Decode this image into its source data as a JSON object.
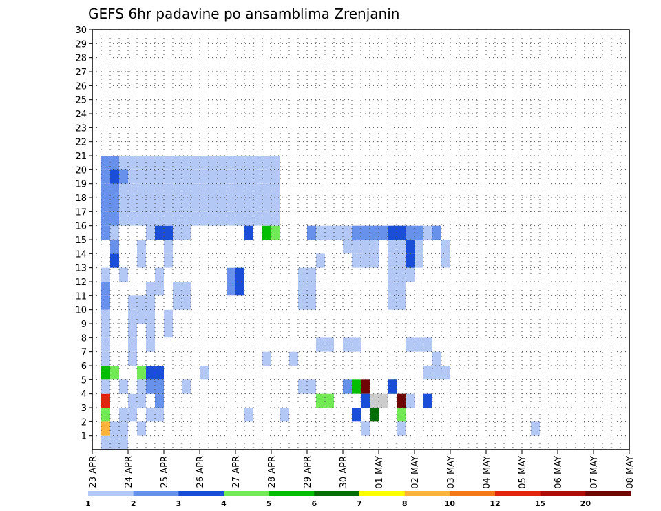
{
  "chart_data": {
    "type": "heatmap",
    "title": "GEFS 6hr padavine po ansamblima Zrenjanin",
    "x_tick_labels": [
      "23 APR",
      "24 APR",
      "25 APR",
      "26 APR",
      "27 APR",
      "28 APR",
      "29 APR",
      "30 APR",
      "01 MAY",
      "02 MAY",
      "03 MAY",
      "04 MAY",
      "05 MAY",
      "06 MAY",
      "07 MAY",
      "08 MAY"
    ],
    "y_tick_labels": [
      "1",
      "2",
      "3",
      "4",
      "5",
      "6",
      "7",
      "8",
      "9",
      "10",
      "11",
      "12",
      "13",
      "14",
      "15",
      "16",
      "17",
      "18",
      "19",
      "20",
      "21",
      "22",
      "23",
      "24",
      "25",
      "26",
      "27",
      "28",
      "29",
      "30"
    ],
    "x_range": [
      "23 APR 00z",
      "08 MAY 00z"
    ],
    "x_step_hours": 6,
    "y_range": [
      0,
      30
    ],
    "grid": true,
    "colorbar": {
      "tick_labels": [
        "1",
        "2",
        "3",
        "4",
        "5",
        "6",
        "7",
        "8",
        "10",
        "12",
        "15",
        "20"
      ],
      "colors": [
        "#b4c8f5",
        "#6891ec",
        "#1b4ed8",
        "#72ea55",
        "#03be03",
        "#066e06",
        "#ffff00",
        "#fbb33b",
        "#f57919",
        "#e0240e",
        "#b00b0b",
        "#700505"
      ],
      "bounds": [
        1,
        2,
        3,
        4,
        5,
        6,
        7,
        8,
        10,
        12,
        15,
        20,
        25
      ]
    },
    "cells": [
      [
        1,
        0,
        1
      ],
      [
        3,
        2,
        1
      ],
      [
        3,
        4,
        1
      ],
      [
        5,
        9,
        1
      ],
      [
        10,
        4,
        1
      ],
      [
        21,
        2,
        1
      ],
      [
        34,
        1,
        1
      ],
      [
        49,
        1,
        1
      ],
      [
        1,
        1,
        8
      ],
      [
        2,
        0,
        1
      ],
      [
        2,
        1,
        1
      ],
      [
        3,
        0,
        1
      ],
      [
        3,
        1,
        1
      ],
      [
        17,
        2,
        1
      ],
      [
        25,
        3,
        4
      ],
      [
        26,
        3,
        4
      ],
      [
        29,
        4,
        5
      ],
      [
        30,
        4,
        12
      ],
      [
        31,
        3,
        13
      ],
      [
        32,
        3,
        13
      ],
      [
        33,
        4,
        6
      ],
      [
        34,
        3,
        12
      ],
      [
        35,
        3,
        1
      ],
      [
        37,
        3,
        3
      ],
      [
        1,
        2,
        4
      ],
      [
        1,
        3,
        10
      ],
      [
        4,
        2,
        1
      ],
      [
        4,
        3,
        1
      ],
      [
        5,
        1,
        1
      ],
      [
        5,
        3,
        1
      ],
      [
        5,
        4,
        1
      ],
      [
        6,
        2,
        1
      ],
      [
        6,
        4,
        2
      ],
      [
        7,
        2,
        1
      ],
      [
        7,
        3,
        2
      ],
      [
        7,
        4,
        2
      ],
      [
        23,
        4,
        1
      ],
      [
        24,
        4,
        1
      ],
      [
        28,
        4,
        2
      ],
      [
        29,
        2,
        3
      ],
      [
        30,
        1,
        1
      ],
      [
        30,
        3,
        3
      ],
      [
        31,
        2,
        6
      ],
      [
        33,
        4,
        3
      ],
      [
        34,
        2,
        4
      ],
      [
        1,
        4,
        1
      ],
      [
        1,
        5,
        5
      ],
      [
        2,
        5,
        4
      ],
      [
        5,
        5,
        4
      ],
      [
        6,
        5,
        3
      ],
      [
        7,
        5,
        3
      ],
      [
        12,
        5,
        1
      ],
      [
        37,
        5,
        1
      ],
      [
        38,
        5,
        1
      ],
      [
        39,
        5,
        1
      ],
      [
        1,
        6,
        1
      ],
      [
        1,
        7,
        1
      ],
      [
        1,
        8,
        1
      ],
      [
        4,
        6,
        1
      ],
      [
        4,
        7,
        1
      ],
      [
        4,
        8,
        1
      ],
      [
        6,
        7,
        1
      ],
      [
        6,
        8,
        1
      ],
      [
        6,
        9,
        1
      ],
      [
        8,
        8,
        1
      ],
      [
        8,
        9,
        1
      ],
      [
        19,
        6,
        1
      ],
      [
        22,
        6,
        1
      ],
      [
        25,
        7,
        1
      ],
      [
        26,
        7,
        1
      ],
      [
        28,
        7,
        1
      ],
      [
        29,
        7,
        1
      ],
      [
        35,
        7,
        1
      ],
      [
        36,
        7,
        1
      ],
      [
        37,
        7,
        1
      ],
      [
        38,
        6,
        1
      ],
      [
        1,
        9,
        1
      ],
      [
        1,
        10,
        2
      ],
      [
        1,
        11,
        2
      ],
      [
        1,
        12,
        1
      ],
      [
        3,
        12,
        1
      ],
      [
        4,
        9,
        1
      ],
      [
        4,
        10,
        1
      ],
      [
        5,
        9,
        1
      ],
      [
        5,
        10,
        1
      ],
      [
        6,
        10,
        1
      ],
      [
        6,
        11,
        1
      ],
      [
        7,
        11,
        1
      ],
      [
        7,
        12,
        1
      ],
      [
        9,
        10,
        1
      ],
      [
        9,
        11,
        1
      ],
      [
        10,
        10,
        1
      ],
      [
        10,
        11,
        1
      ],
      [
        15,
        11,
        2
      ],
      [
        15,
        12,
        2
      ],
      [
        16,
        11,
        3
      ],
      [
        16,
        12,
        3
      ],
      [
        23,
        10,
        1
      ],
      [
        23,
        11,
        1
      ],
      [
        23,
        12,
        1
      ],
      [
        24,
        10,
        1
      ],
      [
        24,
        11,
        1
      ],
      [
        24,
        12,
        1
      ],
      [
        25,
        13,
        1
      ],
      [
        33,
        10,
        1
      ],
      [
        33,
        11,
        1
      ],
      [
        33,
        12,
        1
      ],
      [
        33,
        13,
        1
      ],
      [
        33,
        14,
        1
      ],
      [
        34,
        10,
        1
      ],
      [
        34,
        11,
        1
      ],
      [
        34,
        12,
        1
      ],
      [
        34,
        13,
        1
      ],
      [
        34,
        14,
        1
      ],
      [
        35,
        12,
        1
      ],
      [
        35,
        13,
        1
      ],
      [
        2,
        13,
        3
      ],
      [
        2,
        14,
        2
      ],
      [
        5,
        13,
        1
      ],
      [
        5,
        14,
        1
      ],
      [
        8,
        13,
        1
      ],
      [
        8,
        14,
        1
      ],
      [
        28,
        14,
        1
      ],
      [
        29,
        13,
        1
      ],
      [
        29,
        14,
        1
      ],
      [
        30,
        13,
        1
      ],
      [
        30,
        14,
        1
      ],
      [
        31,
        13,
        1
      ],
      [
        31,
        14,
        1
      ],
      [
        33,
        14,
        1
      ],
      [
        34,
        14,
        1
      ],
      [
        35,
        13,
        3
      ],
      [
        35,
        14,
        3
      ],
      [
        36,
        13,
        1
      ],
      [
        36,
        14,
        1
      ],
      [
        39,
        13,
        1
      ],
      [
        39,
        14,
        1
      ],
      [
        1,
        15,
        2
      ],
      [
        2,
        15,
        1
      ],
      [
        6,
        15,
        1
      ],
      [
        7,
        15,
        3
      ],
      [
        8,
        15,
        3
      ],
      [
        9,
        15,
        1
      ],
      [
        10,
        15,
        1
      ],
      [
        17,
        15,
        3
      ],
      [
        19,
        15,
        5
      ],
      [
        20,
        15,
        4
      ],
      [
        24,
        15,
        2
      ],
      [
        25,
        15,
        1
      ],
      [
        26,
        15,
        1
      ],
      [
        27,
        15,
        1
      ],
      [
        28,
        15,
        1
      ],
      [
        29,
        15,
        2
      ],
      [
        30,
        15,
        2
      ],
      [
        31,
        15,
        2
      ],
      [
        32,
        15,
        2
      ],
      [
        33,
        15,
        3
      ],
      [
        34,
        15,
        3
      ],
      [
        35,
        15,
        2
      ],
      [
        36,
        15,
        2
      ],
      [
        37,
        15,
        1
      ],
      [
        38,
        15,
        2
      ],
      [
        1,
        16,
        2
      ],
      [
        1,
        17,
        2
      ],
      [
        1,
        18,
        2
      ],
      [
        1,
        19,
        2
      ],
      [
        1,
        20,
        2
      ],
      [
        2,
        16,
        2
      ],
      [
        2,
        17,
        2
      ],
      [
        2,
        18,
        2
      ],
      [
        2,
        19,
        3
      ],
      [
        2,
        20,
        2
      ],
      [
        3,
        16,
        1
      ],
      [
        3,
        17,
        1
      ],
      [
        3,
        18,
        1
      ],
      [
        3,
        19,
        2
      ],
      [
        3,
        20,
        1
      ],
      [
        4,
        16,
        1
      ],
      [
        4,
        17,
        1
      ],
      [
        4,
        18,
        1
      ],
      [
        4,
        19,
        1
      ],
      [
        4,
        20,
        1
      ],
      [
        5,
        16,
        1
      ],
      [
        5,
        17,
        1
      ],
      [
        5,
        18,
        1
      ],
      [
        5,
        19,
        1
      ],
      [
        5,
        20,
        1
      ],
      [
        6,
        16,
        1
      ],
      [
        6,
        17,
        1
      ],
      [
        6,
        18,
        1
      ],
      [
        6,
        19,
        1
      ],
      [
        6,
        20,
        1
      ],
      [
        7,
        16,
        1
      ],
      [
        7,
        17,
        1
      ],
      [
        7,
        18,
        1
      ],
      [
        7,
        19,
        1
      ],
      [
        7,
        20,
        1
      ],
      [
        8,
        16,
        1
      ],
      [
        8,
        17,
        1
      ],
      [
        8,
        18,
        1
      ],
      [
        8,
        19,
        1
      ],
      [
        8,
        20,
        1
      ],
      [
        9,
        16,
        1
      ],
      [
        9,
        17,
        1
      ],
      [
        9,
        18,
        1
      ],
      [
        9,
        19,
        1
      ],
      [
        9,
        20,
        1
      ],
      [
        10,
        16,
        1
      ],
      [
        10,
        17,
        1
      ],
      [
        10,
        18,
        1
      ],
      [
        10,
        19,
        1
      ],
      [
        10,
        20,
        1
      ],
      [
        11,
        16,
        1
      ],
      [
        11,
        17,
        1
      ],
      [
        11,
        18,
        1
      ],
      [
        11,
        19,
        1
      ],
      [
        11,
        20,
        1
      ],
      [
        12,
        16,
        1
      ],
      [
        12,
        17,
        1
      ],
      [
        12,
        18,
        1
      ],
      [
        12,
        19,
        1
      ],
      [
        12,
        20,
        1
      ],
      [
        13,
        16,
        1
      ],
      [
        13,
        17,
        1
      ],
      [
        13,
        18,
        1
      ],
      [
        13,
        19,
        1
      ],
      [
        13,
        20,
        1
      ],
      [
        14,
        16,
        1
      ],
      [
        14,
        17,
        1
      ],
      [
        14,
        18,
        1
      ],
      [
        14,
        19,
        1
      ],
      [
        14,
        20,
        1
      ],
      [
        15,
        16,
        1
      ],
      [
        15,
        17,
        1
      ],
      [
        15,
        18,
        1
      ],
      [
        15,
        19,
        1
      ],
      [
        15,
        20,
        1
      ],
      [
        16,
        16,
        1
      ],
      [
        16,
        17,
        1
      ],
      [
        16,
        18,
        1
      ],
      [
        16,
        19,
        1
      ],
      [
        16,
        20,
        1
      ],
      [
        17,
        16,
        1
      ],
      [
        17,
        17,
        1
      ],
      [
        17,
        18,
        1
      ],
      [
        17,
        19,
        1
      ],
      [
        17,
        20,
        1
      ],
      [
        18,
        16,
        1
      ],
      [
        18,
        17,
        1
      ],
      [
        18,
        18,
        1
      ],
      [
        18,
        19,
        1
      ],
      [
        18,
        20,
        1
      ],
      [
        19,
        16,
        1
      ],
      [
        19,
        17,
        1
      ],
      [
        19,
        18,
        1
      ],
      [
        19,
        19,
        1
      ],
      [
        19,
        20,
        1
      ],
      [
        20,
        16,
        1
      ],
      [
        20,
        17,
        1
      ],
      [
        20,
        18,
        1
      ],
      [
        20,
        19,
        1
      ],
      [
        20,
        20,
        1
      ]
    ]
  }
}
